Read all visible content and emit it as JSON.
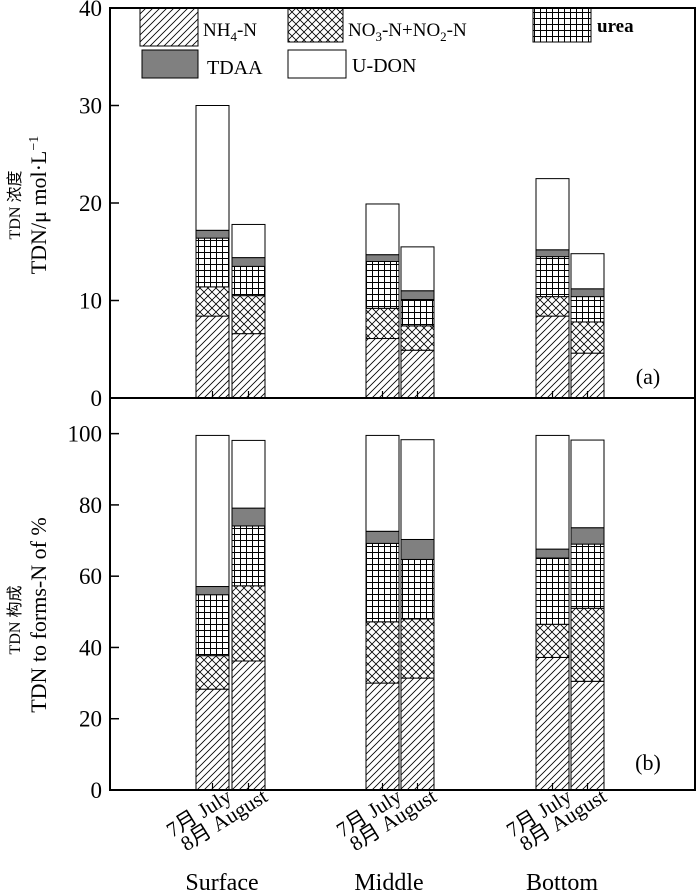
{
  "chart_data": [
    {
      "type": "bar",
      "stacked": true,
      "panel_label": "(a)",
      "ylabel_cn": "TDN 浓度",
      "ylabel_en": "TDN/μ mol·L",
      "ylabel_sup": "−1",
      "ylim": [
        0,
        40
      ],
      "yticks": [
        0,
        10,
        20,
        30,
        40
      ],
      "categories": [
        "Surface 7月 July",
        "Surface 8月 August",
        "Middle 7月 July",
        "Middle 8月 August",
        "Bottom 7月 July",
        "Bottom 8月 August"
      ],
      "series": [
        {
          "name": "NH4-N",
          "values": [
            8.4,
            6.6,
            6.1,
            4.9,
            8.4,
            4.6
          ]
        },
        {
          "name": "NO3-N+NO2-N",
          "values": [
            3.0,
            3.9,
            3.1,
            2.5,
            2.0,
            3.2
          ]
        },
        {
          "name": "urea",
          "values": [
            5.0,
            3.0,
            4.8,
            2.7,
            4.1,
            2.6
          ]
        },
        {
          "name": "TDAA",
          "values": [
            0.8,
            0.9,
            0.7,
            0.9,
            0.7,
            0.8
          ]
        },
        {
          "name": "U-DON",
          "values": [
            12.8,
            3.4,
            5.2,
            4.5,
            7.3,
            3.6
          ]
        }
      ],
      "legend": {
        "position": "top",
        "entries": [
          {
            "label": "NH",
            "sub": "4",
            "tail": "-N"
          },
          {
            "label": "NO",
            "sub": "3",
            "tail": "-N+NO",
            "sub2": "2",
            "tail2": "-N"
          },
          {
            "label": "urea"
          },
          {
            "label": "TDAA"
          },
          {
            "label": "U-DON"
          }
        ]
      }
    },
    {
      "type": "bar",
      "stacked": true,
      "panel_label": "(b)",
      "ylabel_cn": "TDN 构成",
      "ylabel_en": "TDN to forms-N of %",
      "ylim": [
        0,
        110
      ],
      "yticks": [
        0,
        20,
        40,
        60,
        80,
        100
      ],
      "categories": [
        "Surface 7月 July",
        "Surface 8月 August",
        "Middle 7月 July",
        "Middle 8月 August",
        "Bottom 7月 July",
        "Bottom 8月 August"
      ],
      "series": [
        {
          "name": "NH4-N",
          "values": [
            28.3,
            36.2,
            30.0,
            31.4,
            37.2,
            30.5
          ]
        },
        {
          "name": "NO3-N+NO2-N",
          "values": [
            9.4,
            21.1,
            17.2,
            16.6,
            9.3,
            20.5
          ]
        },
        {
          "name": "urea",
          "values": [
            17.1,
            16.8,
            22.0,
            16.7,
            18.6,
            18.0
          ]
        },
        {
          "name": "TDAA",
          "values": [
            2.3,
            5.0,
            3.4,
            5.6,
            2.5,
            4.6
          ]
        },
        {
          "name": "U-DON",
          "values": [
            42.4,
            19.0,
            26.9,
            28.0,
            31.9,
            24.6
          ]
        }
      ]
    }
  ],
  "x_axis": {
    "tick_labels": [
      "7月 July",
      "8月 August",
      "7月 July",
      "8月 August",
      "7月 July",
      "8月 August"
    ],
    "groups": [
      "Surface",
      "Middle",
      "Bottom"
    ]
  },
  "styles": {
    "NH4-N": "hatch-diagonal",
    "NO3-N+NO2-N": "hatch-crosshatch",
    "urea": "grid",
    "TDAA": "#808080",
    "U-DON": "#ffffff"
  }
}
